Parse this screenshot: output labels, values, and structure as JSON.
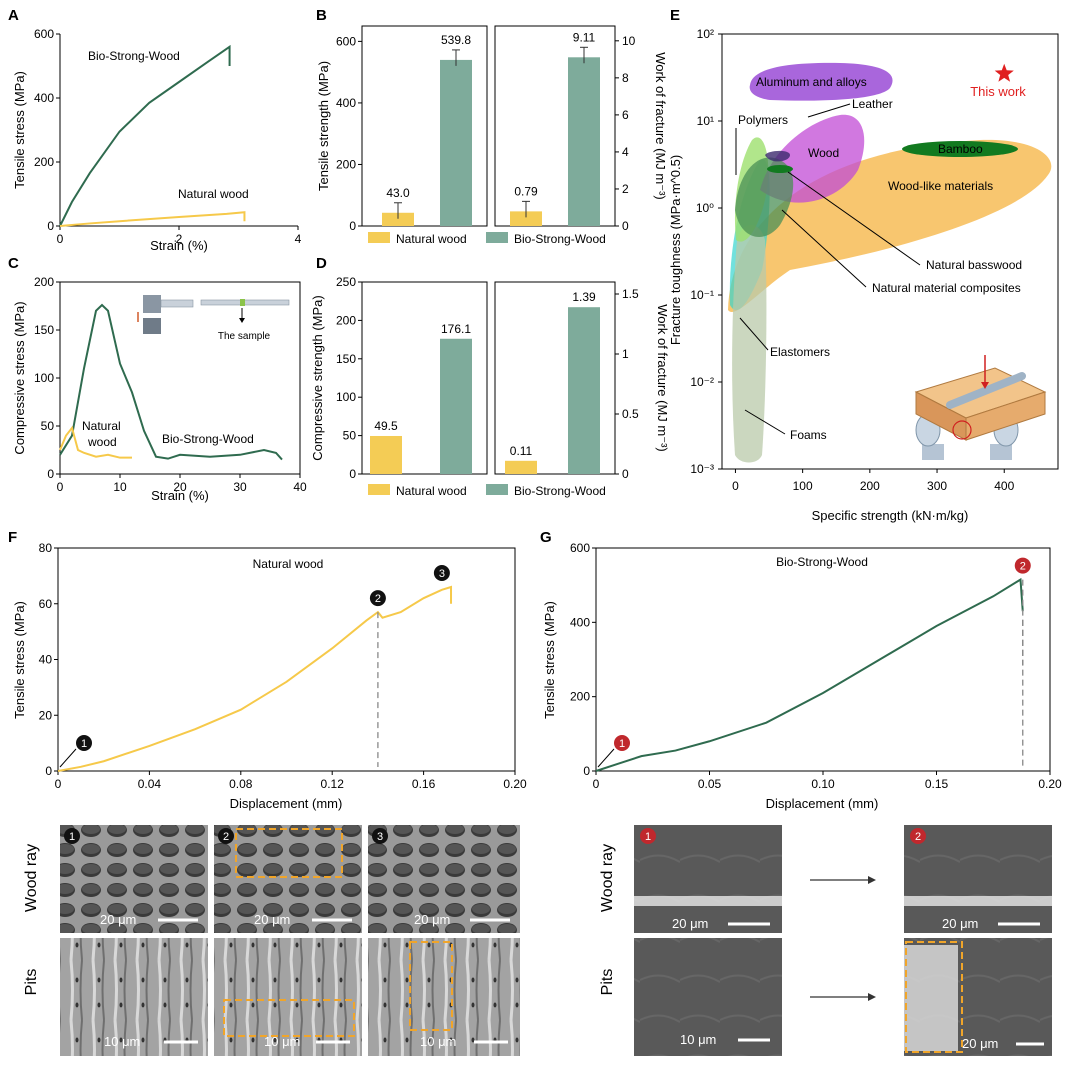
{
  "panel_letters": {
    "A": "A",
    "B": "B",
    "C": "C",
    "D": "D",
    "E": "E",
    "F": "F",
    "G": "G"
  },
  "colors": {
    "natural": "#f6c94a",
    "strong": "#2f6b4f",
    "strong_bar": "#7eab9b",
    "natural_bar": "#f4cc55",
    "red": "#e02020"
  },
  "chart_data": [
    {
      "id": "A",
      "type": "line",
      "xlabel": "Strain (%)",
      "ylabel": "Tensile stress (MPa)",
      "xlim": [
        0,
        4
      ],
      "ylim": [
        0,
        600
      ],
      "xticks": [
        0,
        2,
        4
      ],
      "yticks": [
        0,
        200,
        400,
        600
      ],
      "series": [
        {
          "name": "Bio-Strong-Wood",
          "x": [
            0,
            0.2,
            0.5,
            1.0,
            1.5,
            2.0,
            2.5,
            2.85,
            2.85
          ],
          "y": [
            0,
            75,
            165,
            295,
            385,
            450,
            515,
            560,
            500
          ]
        },
        {
          "name": "Natural wood",
          "x": [
            0,
            0.5,
            1.0,
            2.0,
            2.8,
            3.1,
            3.1
          ],
          "y": [
            0,
            8,
            15,
            28,
            38,
            43,
            15
          ]
        }
      ]
    },
    {
      "id": "B",
      "type": "bar",
      "ylabel": "Tensile strength (MPa)",
      "ylabel2": "Work of fracture (MJ m⁻³)",
      "ylim": [
        0,
        650
      ],
      "yticks": [
        0,
        200,
        400,
        600
      ],
      "ylim2": [
        0,
        10.8
      ],
      "yticks2": [
        0,
        2,
        4,
        6,
        8,
        10
      ],
      "categories": [
        "Natural wood",
        "Bio-Strong-Wood"
      ],
      "series": [
        {
          "name": "Tensile strength",
          "values": [
            43.0,
            539.8
          ],
          "labels": [
            "43.0",
            "539.8"
          ]
        },
        {
          "name": "Work of fracture",
          "values": [
            0.79,
            9.11
          ],
          "labels": [
            "0.79",
            "9.11"
          ]
        }
      ],
      "legend": [
        "Natural wood",
        "Bio-Strong-Wood"
      ]
    },
    {
      "id": "C",
      "type": "line",
      "xlabel": "Strain (%)",
      "ylabel": "Compressive stress (MPa)",
      "xlim": [
        0,
        40
      ],
      "ylim": [
        0,
        200
      ],
      "xticks": [
        0,
        10,
        20,
        30,
        40
      ],
      "yticks": [
        0,
        50,
        100,
        150,
        200
      ],
      "series": [
        {
          "name": "Bio-Strong-Wood",
          "x": [
            0,
            2,
            4,
            6,
            7,
            8,
            10,
            12,
            14,
            16,
            18,
            20,
            25,
            30,
            34,
            36,
            37
          ],
          "y": [
            20,
            40,
            110,
            170,
            176,
            170,
            115,
            85,
            45,
            18,
            16,
            20,
            18,
            20,
            25,
            22,
            15
          ]
        },
        {
          "name": "Natural wood",
          "x": [
            0,
            1,
            2,
            3,
            4,
            6,
            8,
            10,
            12
          ],
          "y": [
            25,
            40,
            48,
            25,
            22,
            18,
            20,
            17,
            17
          ]
        }
      ],
      "annotations": [
        "Natural\nwood",
        "Bio-Strong-Wood",
        "The sample"
      ]
    },
    {
      "id": "D",
      "type": "bar",
      "ylabel": "Compressive strength (MPa)",
      "ylabel2": "Work of fracture (MJ m⁻³)",
      "ylim": [
        0,
        250
      ],
      "yticks": [
        0,
        50,
        100,
        150,
        200,
        250
      ],
      "ylim2": [
        0,
        1.6
      ],
      "yticks2": [
        0,
        0.5,
        1.0,
        1.5
      ],
      "categories": [
        "Natural wood",
        "Bio-Strong-Wood"
      ],
      "series": [
        {
          "name": "Compressive strength",
          "values": [
            49.5,
            176.1
          ],
          "labels": [
            "49.5",
            "176.1"
          ]
        },
        {
          "name": "Work of fracture",
          "values": [
            0.11,
            1.39
          ],
          "labels": [
            "0.11",
            "1.39"
          ]
        }
      ],
      "legend": [
        "Natural wood",
        "Bio-Strong-Wood"
      ]
    },
    {
      "id": "E",
      "type": "scatter",
      "xlabel": "Specific strength (kN·m/kg)",
      "ylabel": "Fracture toughness (MPa·m^0.5)",
      "xlim": [
        -20,
        480
      ],
      "xticks": [
        0,
        100,
        200,
        300,
        400
      ],
      "yscale": "log",
      "ylim": [
        0.001,
        100
      ],
      "yticks": [
        "10⁻³",
        "10⁻²",
        "10⁻¹",
        "10⁰",
        "10¹",
        "10²"
      ],
      "regions": [
        "Aluminum and alloys",
        "Leather",
        "Polymers",
        "Wood",
        "Bamboo",
        "Wood-like materials",
        "Natural basswood",
        "Natural material composites",
        "Elastomers",
        "Foams"
      ],
      "point": {
        "name": "This work",
        "x": 400,
        "y": 35
      }
    },
    {
      "id": "F",
      "type": "line",
      "title": "Natural wood",
      "xlabel": "Displacement (mm)",
      "ylabel": "Tensile stress (MPa)",
      "xlim": [
        0,
        0.2
      ],
      "ylim": [
        0,
        80
      ],
      "xticks": [
        "0",
        "0.04",
        "0.08",
        "0.12",
        "0.16",
        "0.20"
      ],
      "yticks": [
        0,
        20,
        40,
        60,
        80
      ],
      "series": [
        {
          "name": "Natural wood",
          "x": [
            0,
            0.01,
            0.02,
            0.04,
            0.06,
            0.08,
            0.1,
            0.12,
            0.135,
            0.14,
            0.142,
            0.15,
            0.16,
            0.168,
            0.172,
            0.172
          ],
          "y": [
            0,
            1.5,
            3.5,
            9,
            15,
            22,
            32,
            44,
            54,
            57,
            55,
            57,
            62,
            65,
            66,
            60
          ]
        }
      ],
      "markers": [
        {
          "label": "1",
          "x": 0.0
        },
        {
          "label": "2",
          "x": 0.14
        },
        {
          "label": "3",
          "x": 0.168
        }
      ]
    },
    {
      "id": "G",
      "type": "line",
      "title": "Bio-Strong-Wood",
      "xlabel": "Displacement (mm)",
      "ylabel": "Tensile stress (MPa)",
      "xlim": [
        0,
        0.2
      ],
      "ylim": [
        0,
        600
      ],
      "xticks": [
        "0",
        "0.05",
        "0.10",
        "0.15",
        "0.20"
      ],
      "yticks": [
        0,
        200,
        400,
        600
      ],
      "series": [
        {
          "name": "Bio-Strong-Wood",
          "x": [
            0,
            0.01,
            0.02,
            0.035,
            0.05,
            0.075,
            0.1,
            0.125,
            0.15,
            0.175,
            0.187,
            0.188,
            0.188
          ],
          "y": [
            0,
            20,
            40,
            55,
            80,
            130,
            210,
            300,
            390,
            470,
            515,
            430,
            430
          ]
        }
      ],
      "markers": [
        {
          "label": "1",
          "x": 0.0
        },
        {
          "label": "2",
          "x": 0.188
        }
      ]
    }
  ],
  "micrographs": {
    "left_rows": [
      "Wood ray",
      "Pits"
    ],
    "right_rows": [
      "Wood ray",
      "Pits"
    ],
    "left_labels": [
      "1",
      "2",
      "3"
    ],
    "right_labels": [
      "1",
      "2"
    ],
    "scale_left_top": "20 μm",
    "scale_left_bottom": "10 μm",
    "scale_right_tl": "20 μm",
    "scale_right_bl": "10 μm",
    "scale_right_br": "20 μm"
  }
}
